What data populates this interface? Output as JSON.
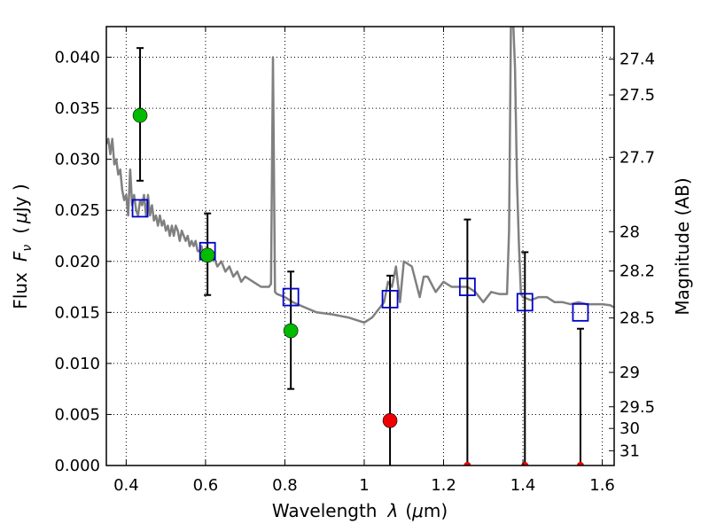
{
  "chart_data": {
    "type": "scatter",
    "title": "",
    "xlabel": {
      "prefix": "Wavelength",
      "symbol": "λ",
      "unit_open": "(",
      "unit_mu": "μ",
      "unit_rest": "m)"
    },
    "ylabel": {
      "prefix": "Flux",
      "symbol": "F",
      "subscript": "ν",
      "unit_open": "(",
      "unit_mu": "μ",
      "unit_rest": "Jy )"
    },
    "y2label": "Magnitude (AB)",
    "xlim": [
      0.35,
      1.63
    ],
    "ylim": [
      0.0,
      0.043
    ],
    "grid": true,
    "x_ticks": [
      0.4,
      0.6,
      0.8,
      1.0,
      1.2,
      1.4,
      1.6
    ],
    "x_tick_labels": [
      "0.4",
      "0.6",
      "0.8",
      "1",
      "1.2",
      "1.4",
      "1.6"
    ],
    "y_ticks": [
      0.0,
      0.005,
      0.01,
      0.015,
      0.02,
      0.025,
      0.03,
      0.035,
      0.04
    ],
    "y_tick_labels": [
      "0.000",
      "0.005",
      "0.010",
      "0.015",
      "0.020",
      "0.025",
      "0.030",
      "0.035",
      "0.040"
    ],
    "y2_ticks": [
      "27.4",
      "27.5",
      "27.7",
      "28",
      "28.2",
      "28.5",
      "29",
      "29.5",
      "30",
      "31"
    ],
    "colors": {
      "spectrum": "#808080",
      "model": "#0000cc",
      "detection": "#00bb00",
      "upper_limit": "#ee0000",
      "errorbar": "#000000"
    },
    "spectrum": {
      "name": "",
      "x": [
        0.35,
        0.355,
        0.36,
        0.365,
        0.37,
        0.375,
        0.38,
        0.385,
        0.39,
        0.395,
        0.4,
        0.405,
        0.41,
        0.415,
        0.42,
        0.425,
        0.43,
        0.435,
        0.44,
        0.445,
        0.45,
        0.455,
        0.46,
        0.465,
        0.47,
        0.475,
        0.48,
        0.485,
        0.49,
        0.495,
        0.5,
        0.505,
        0.51,
        0.515,
        0.52,
        0.525,
        0.53,
        0.535,
        0.54,
        0.545,
        0.55,
        0.555,
        0.56,
        0.565,
        0.57,
        0.575,
        0.58,
        0.585,
        0.59,
        0.595,
        0.6,
        0.61,
        0.62,
        0.63,
        0.64,
        0.65,
        0.66,
        0.67,
        0.68,
        0.69,
        0.7,
        0.72,
        0.74,
        0.76,
        0.765,
        0.77,
        0.775,
        0.78,
        0.8,
        0.82,
        0.85,
        0.88,
        0.92,
        0.96,
        1.0,
        1.02,
        1.04,
        1.05,
        1.06,
        1.07,
        1.08,
        1.09,
        1.1,
        1.12,
        1.14,
        1.15,
        1.16,
        1.18,
        1.2,
        1.22,
        1.24,
        1.26,
        1.28,
        1.3,
        1.32,
        1.34,
        1.36,
        1.365,
        1.37,
        1.375,
        1.38,
        1.385,
        1.39,
        1.395,
        1.4,
        1.42,
        1.44,
        1.46,
        1.48,
        1.5,
        1.52,
        1.54,
        1.56,
        1.58,
        1.6,
        1.62,
        1.63
      ],
      "y": [
        0.0315,
        0.032,
        0.0305,
        0.032,
        0.0295,
        0.03,
        0.0285,
        0.029,
        0.027,
        0.026,
        0.0265,
        0.0245,
        0.029,
        0.0255,
        0.0265,
        0.025,
        0.0245,
        0.026,
        0.0255,
        0.0265,
        0.0245,
        0.0265,
        0.0245,
        0.0255,
        0.024,
        0.0245,
        0.0235,
        0.0245,
        0.0235,
        0.024,
        0.023,
        0.0235,
        0.0225,
        0.0235,
        0.0225,
        0.0235,
        0.023,
        0.022,
        0.023,
        0.0225,
        0.022,
        0.0225,
        0.0215,
        0.022,
        0.0215,
        0.022,
        0.021,
        0.021,
        0.0215,
        0.0205,
        0.021,
        0.0205,
        0.0205,
        0.0195,
        0.02,
        0.019,
        0.0195,
        0.0185,
        0.019,
        0.018,
        0.0185,
        0.018,
        0.0175,
        0.0175,
        0.0178,
        0.04,
        0.017,
        0.0168,
        0.0165,
        0.016,
        0.0155,
        0.015,
        0.0148,
        0.0145,
        0.014,
        0.0145,
        0.0155,
        0.016,
        0.018,
        0.0175,
        0.0195,
        0.016,
        0.02,
        0.0195,
        0.0165,
        0.0185,
        0.0185,
        0.017,
        0.018,
        0.0175,
        0.0175,
        0.0175,
        0.017,
        0.016,
        0.017,
        0.0168,
        0.0168,
        0.023,
        0.044,
        0.044,
        0.039,
        0.028,
        0.0215,
        0.0168,
        0.0165,
        0.0162,
        0.0165,
        0.0165,
        0.016,
        0.016,
        0.0158,
        0.016,
        0.0158,
        0.0158,
        0.0158,
        0.0157,
        0.0155
      ]
    },
    "model_points": {
      "name": "",
      "x": [
        0.435,
        0.605,
        0.815,
        1.065,
        1.26,
        1.405,
        1.545
      ],
      "y": [
        0.0252,
        0.021,
        0.0165,
        0.0163,
        0.0175,
        0.016,
        0.015
      ]
    },
    "detections": {
      "name": "",
      "x": [
        0.435,
        0.605,
        0.815
      ],
      "y": [
        0.0343,
        0.0206,
        0.0132
      ],
      "err_low": [
        0.0279,
        0.0167,
        0.0075
      ],
      "err_high": [
        0.0409,
        0.0247,
        0.019
      ]
    },
    "upper_limits": {
      "name": "",
      "x": [
        1.065,
        1.26,
        1.405,
        1.545
      ],
      "y": [
        0.0044,
        0.0,
        0.0,
        0.0
      ],
      "err_low": [
        0.0,
        0.0,
        0.0,
        0.0
      ],
      "err_high": [
        0.0186,
        0.0241,
        0.0209,
        0.0134
      ]
    }
  }
}
